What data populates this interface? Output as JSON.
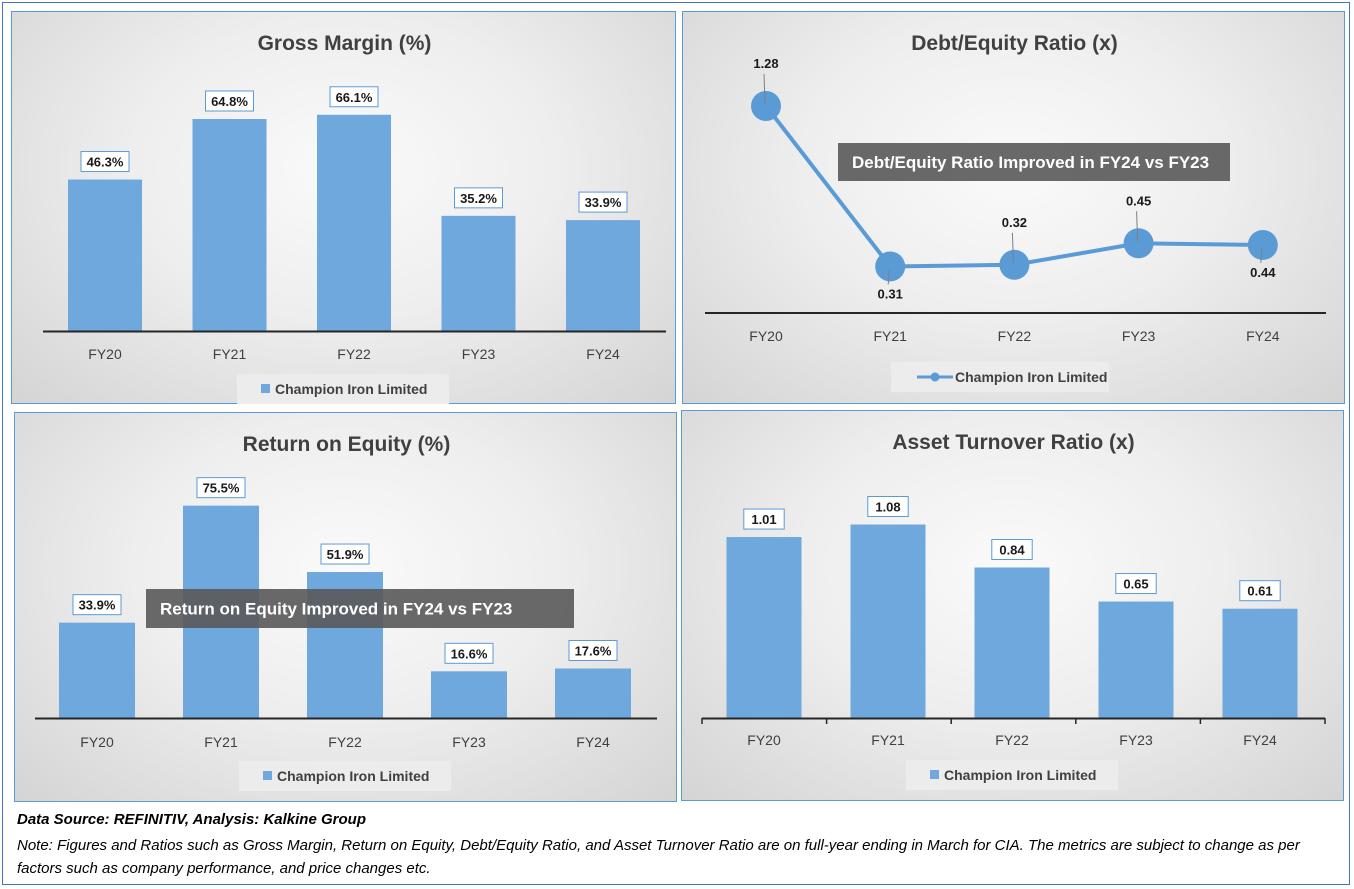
{
  "chart_data": [
    {
      "type": "bar",
      "title": "Gross Margin (%)",
      "categories": [
        "FY20",
        "FY21",
        "FY22",
        "FY23",
        "FY24"
      ],
      "series": [
        {
          "name": "Champion Iron Limited",
          "values": [
            46.3,
            64.8,
            66.1,
            35.2,
            33.9
          ]
        }
      ],
      "value_labels": [
        "46.3%",
        "64.8%",
        "66.1%",
        "35.2%",
        "33.9%"
      ],
      "ylim": [
        0,
        70
      ],
      "legend": "bottom",
      "grid": false,
      "color": "#6fa8dc"
    },
    {
      "type": "line",
      "title": "Debt/Equity Ratio (x)",
      "categories": [
        "FY20",
        "FY21",
        "FY22",
        "FY23",
        "FY24"
      ],
      "series": [
        {
          "name": "Champion Iron Limited",
          "values": [
            1.28,
            0.31,
            0.32,
            0.45,
            0.44
          ]
        }
      ],
      "value_labels": [
        "1.28",
        "0.31",
        "0.32",
        "0.45",
        "0.44"
      ],
      "ylim": [
        -0.05,
        1.4
      ],
      "annotation": "Debt/Equity Ratio Improved in FY24 vs FY23",
      "legend": "bottom",
      "grid": false,
      "color": "#5b9bd5"
    },
    {
      "type": "bar",
      "title": "Return on Equity (%)",
      "categories": [
        "FY20",
        "FY21",
        "FY22",
        "FY23",
        "FY24"
      ],
      "series": [
        {
          "name": "Champion Iron Limited",
          "values": [
            33.9,
            75.5,
            51.9,
            16.6,
            17.6
          ]
        }
      ],
      "value_labels": [
        "33.9%",
        "75.5%",
        "51.9%",
        "16.6%",
        "17.6%"
      ],
      "ylim": [
        0,
        80
      ],
      "annotation": "Return on Equity Improved in FY24 vs FY23",
      "legend": "bottom",
      "grid": false,
      "color": "#6fa8dc"
    },
    {
      "type": "bar",
      "title": "Asset Turnover Ratio (x)",
      "categories": [
        "FY20",
        "FY21",
        "FY22",
        "FY23",
        "FY24"
      ],
      "series": [
        {
          "name": "Champion Iron Limited",
          "values": [
            1.01,
            1.08,
            0.84,
            0.65,
            0.61
          ]
        }
      ],
      "value_labels": [
        "1.01",
        "1.08",
        "0.84",
        "0.65",
        "0.61"
      ],
      "ylim": [
        0,
        1.2
      ],
      "legend": "bottom",
      "grid": false,
      "color": "#6fa8dc"
    }
  ],
  "footer": {
    "source": "Data Source: REFINITIV, Analysis: Kalkine Group",
    "note": "Note: Figures and Ratios such as Gross Margin, Return on Equity, Debt/Equity Ratio, and Asset Turnover Ratio are on full-year ending in March for CIA. The metrics are subject to change as per factors such as company performance, and price changes etc."
  }
}
